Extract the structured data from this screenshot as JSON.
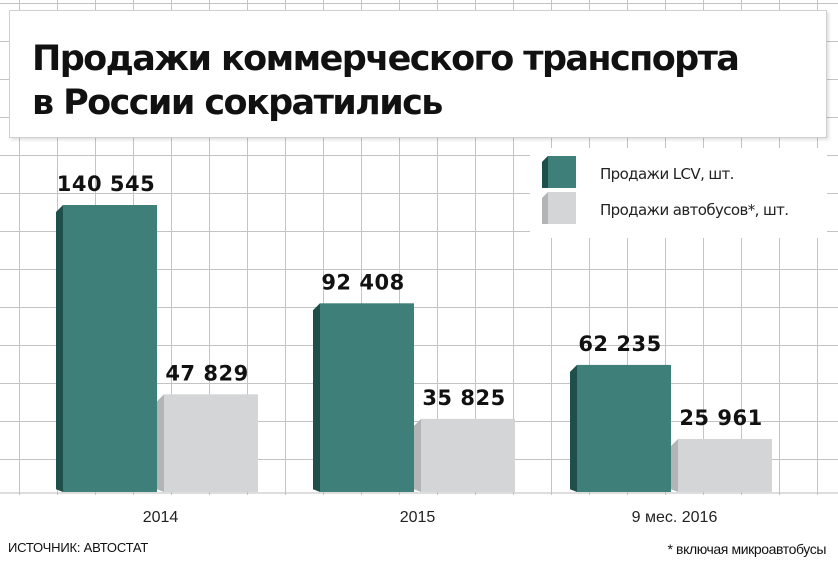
{
  "title_lines": [
    "Продажи коммерческого транспорта",
    "в России сократились"
  ],
  "legend": {
    "items": [
      {
        "label": "Продажи LCV, шт.",
        "color": "#3e7f79",
        "shade": "#1f4f4a"
      },
      {
        "label": "Продажи автобусов*, шт.",
        "color": "#d4d5d7",
        "shade": "#b3b4b6"
      }
    ]
  },
  "source": "ИСТОЧНИК: АВТОСТАТ",
  "footnote": "* включая микроавтобусы",
  "chart_data": {
    "type": "bar",
    "categories": [
      "2014",
      "2015",
      "9 мес. 2016"
    ],
    "series": [
      {
        "name": "Продажи LCV, шт.",
        "values": [
          140545,
          92408,
          62235
        ],
        "labels": [
          "140 545",
          "92 408",
          "62 235"
        ]
      },
      {
        "name": "Продажи автобусов*, шт.",
        "values": [
          47829,
          35825,
          25961
        ],
        "labels": [
          "47 829",
          "35 825",
          "25 961"
        ]
      }
    ],
    "title": "Продажи коммерческого транспорта в России сократились",
    "xlabel": "",
    "ylabel": "",
    "ylim": [
      0,
      150000
    ],
    "grid": true,
    "legend_position": "top-right"
  }
}
